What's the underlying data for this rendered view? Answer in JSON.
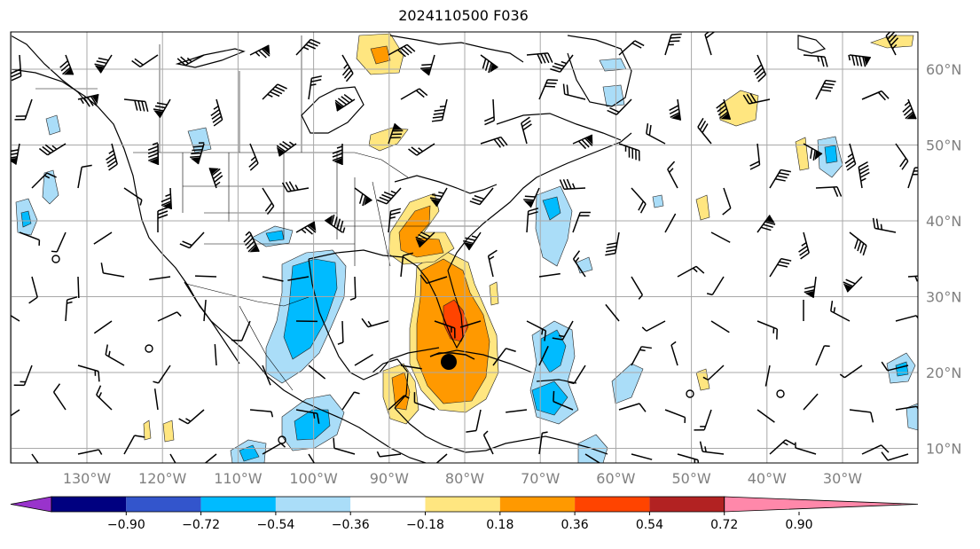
{
  "title": "2024110500 F036",
  "map": {
    "lon_labels": [
      "130°W",
      "120°W",
      "110°W",
      "100°W",
      "90°W",
      "80°W",
      "70°W",
      "60°W",
      "50°W",
      "40°W",
      "30°W"
    ],
    "lat_labels": [
      "60°N",
      "50°N",
      "40°N",
      "30°N",
      "20°N",
      "10°N"
    ],
    "grid_color": "#a8a8a8",
    "label_color": "#808080"
  },
  "colorbar": {
    "tick_labels": [
      "−0.90",
      "−0.72",
      "−0.54",
      "−0.36",
      "−0.18",
      "0.18",
      "0.36",
      "0.54",
      "0.72",
      "0.90"
    ],
    "colors": [
      "#9933cc",
      "#000080",
      "#3355cc",
      "#00bbff",
      "#aaddf8",
      "#ffffff",
      "#ffe680",
      "#ff9900",
      "#ff4400",
      "#b22222",
      "#ff88aa"
    ]
  },
  "fill_colors": {
    "neg_light": "#aaddf8",
    "neg_mid": "#00bbff",
    "pos_light": "#ffe680",
    "pos_mid": "#ff9900",
    "pos_strong": "#ff4400"
  }
}
